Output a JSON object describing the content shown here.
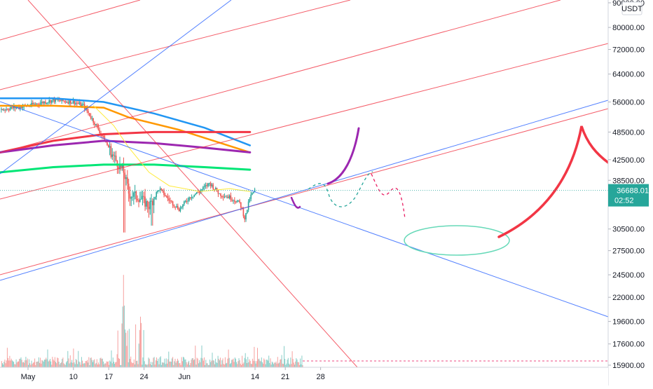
{
  "chart_data": {
    "type": "candlestick",
    "quote_currency": "USDT",
    "last_price": "36688.01",
    "countdown": "02:52",
    "price_axis": {
      "scale": "log",
      "ticks": [
        90000,
        80000,
        72000,
        64000,
        56000,
        48500,
        42500,
        38500,
        34500,
        30500,
        27500,
        24500,
        22000,
        19600,
        17600,
        15900
      ],
      "tick_labels": [
        "90000.00",
        "80000.00",
        "72000.00",
        "64000.00",
        "56000.00",
        "48500.00",
        "42500.00",
        "38500.00",
        "34500.00",
        "30500.00",
        "27500.00",
        "24500.00",
        "22000.00",
        "19600.00",
        "17600.00",
        "15900.00"
      ]
    },
    "time_axis": {
      "labels": [
        "May",
        "10",
        "17",
        "24",
        "Jun",
        "14",
        "21",
        "28"
      ]
    },
    "colors": {
      "up": "#26a69a",
      "down": "#ef5350",
      "ma_blue": "#2196f3",
      "ma_orange": "#ff9800",
      "ma_red": "#f23645",
      "ma_purple": "#9c27b0",
      "ma_green": "#00e676",
      "ma_yellow": "#ffeb3b",
      "trend_red": "#f23645",
      "trend_blue": "#2962ff",
      "forecast_green": "#26a69a",
      "forecast_pink": "#e91e63",
      "ellipse": "#66d9b8",
      "price_badge": "#26a69a"
    }
  }
}
